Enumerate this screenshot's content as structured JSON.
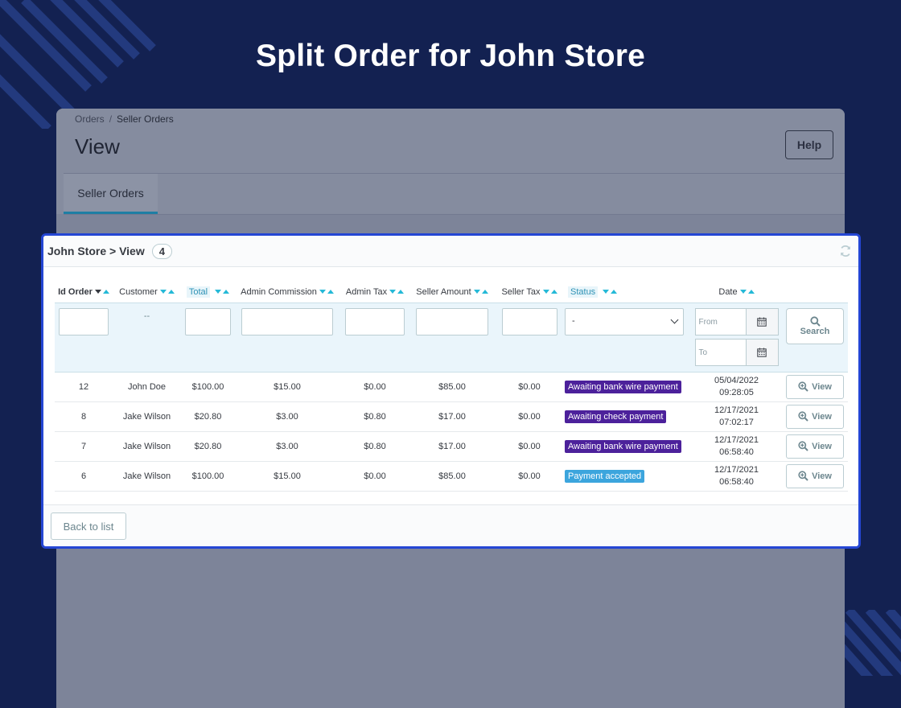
{
  "colors": {
    "background": "#132151",
    "card_border": "#2446d4",
    "accent": "#25b9d7",
    "status_awaiting": "#4c219b",
    "status_accepted": "#3ca5dd"
  },
  "hero": {
    "title": "Split Order for John Store"
  },
  "breadcrumb": {
    "parent": "Orders",
    "separator": "/",
    "current": "Seller Orders"
  },
  "header": {
    "page_title": "View",
    "help_label": "Help"
  },
  "tabs": [
    {
      "label": "Seller Orders"
    }
  ],
  "card": {
    "title": "John Store > View",
    "count": "4",
    "refresh_icon": "refresh-icon"
  },
  "table": {
    "columns": [
      {
        "label": "Id Order",
        "sorted": "desc"
      },
      {
        "label": "Customer"
      },
      {
        "label": "Total",
        "highlighted": true
      },
      {
        "label": "Admin Commission"
      },
      {
        "label": "Admin Tax"
      },
      {
        "label": "Seller Amount"
      },
      {
        "label": "Seller Tax"
      },
      {
        "label": "Status",
        "highlighted": true
      },
      {
        "label": "Date"
      }
    ],
    "filters": {
      "customer_placeholder": "--",
      "status_selected": "-",
      "date_from_placeholder": "From",
      "date_to_placeholder": "To",
      "search_label": "Search"
    },
    "rows": [
      {
        "id": "12",
        "customer": "John Doe",
        "total": "$100.00",
        "admin_commission": "$15.00",
        "admin_tax": "$0.00",
        "seller_amount": "$85.00",
        "seller_tax": "$0.00",
        "status": "Awaiting bank wire payment",
        "status_color": "#4c219b",
        "date": "05/04/2022",
        "time": "09:28:05",
        "action": "View"
      },
      {
        "id": "8",
        "customer": "Jake Wilson",
        "total": "$20.80",
        "admin_commission": "$3.00",
        "admin_tax": "$0.80",
        "seller_amount": "$17.00",
        "seller_tax": "$0.00",
        "status": "Awaiting check payment",
        "status_color": "#4c219b",
        "date": "12/17/2021",
        "time": "07:02:17",
        "action": "View"
      },
      {
        "id": "7",
        "customer": "Jake Wilson",
        "total": "$20.80",
        "admin_commission": "$3.00",
        "admin_tax": "$0.80",
        "seller_amount": "$17.00",
        "seller_tax": "$0.00",
        "status": "Awaiting bank wire payment",
        "status_color": "#4c219b",
        "date": "12/17/2021",
        "time": "06:58:40",
        "action": "View"
      },
      {
        "id": "6",
        "customer": "Jake Wilson",
        "total": "$100.00",
        "admin_commission": "$15.00",
        "admin_tax": "$0.00",
        "seller_amount": "$85.00",
        "seller_tax": "$0.00",
        "status": "Payment accepted",
        "status_color": "#3ca5dd",
        "date": "12/17/2021",
        "time": "06:58:40",
        "action": "View"
      }
    ]
  },
  "footer": {
    "back_label": "Back to list"
  }
}
